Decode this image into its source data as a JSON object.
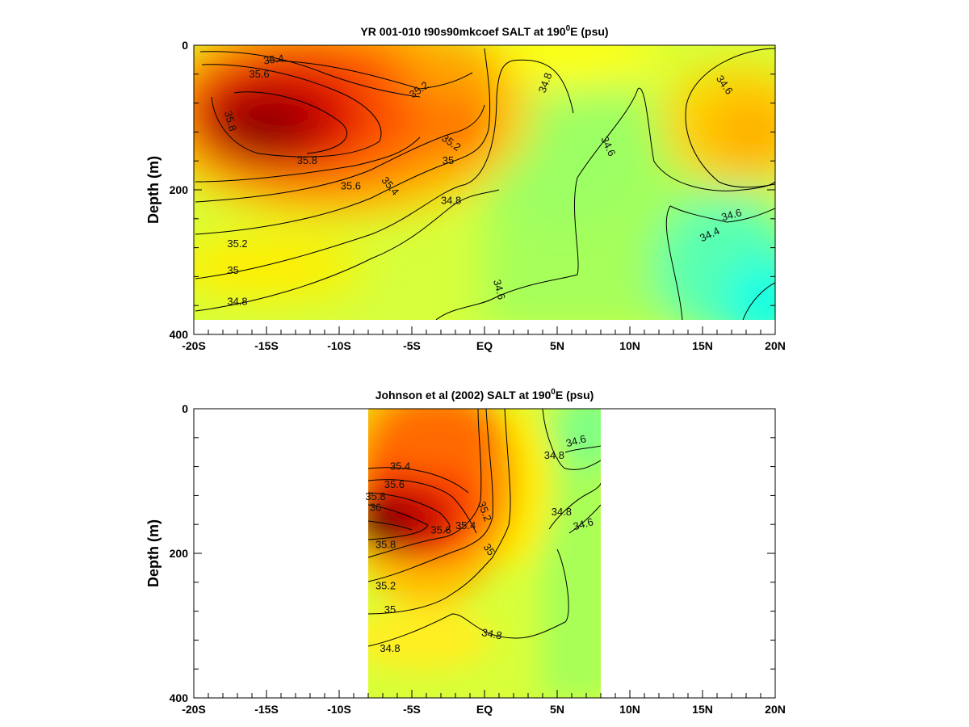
{
  "chart_data": [
    {
      "type": "heatmap",
      "title_main": "YR 001-010 t90s90mkcoef SALT at 190",
      "title_sup": "0",
      "title_tail": "E (psu)",
      "xlabel": "",
      "ylabel": "Depth (m)",
      "x_range": [
        -20,
        20
      ],
      "y_range": [
        0,
        400
      ],
      "y_inverted": true,
      "data_extent": {
        "x": [
          -20,
          20
        ],
        "depth": [
          0,
          380
        ]
      },
      "x_ticks": [
        {
          "value": -20,
          "label": "-20S"
        },
        {
          "value": -15,
          "label": "-15S"
        },
        {
          "value": -10,
          "label": "-10S"
        },
        {
          "value": -5,
          "label": "-5S"
        },
        {
          "value": 0,
          "label": "EQ"
        },
        {
          "value": 5,
          "label": "5N"
        },
        {
          "value": 10,
          "label": "10N"
        },
        {
          "value": 15,
          "label": "15N"
        },
        {
          "value": 20,
          "label": "20N"
        }
      ],
      "y_ticks": [
        {
          "value": 0,
          "label": "0"
        },
        {
          "value": 200,
          "label": "200"
        },
        {
          "value": 400,
          "label": "400"
        }
      ],
      "contour_labels": [
        {
          "text": "35.4",
          "x": -14.5,
          "depth": 20,
          "rotate": -8
        },
        {
          "text": "35.6",
          "x": -15.5,
          "depth": 40,
          "rotate": 0
        },
        {
          "text": "35.2",
          "x": -4.5,
          "depth": 62,
          "rotate": -35
        },
        {
          "text": "35.8",
          "x": -17.5,
          "depth": 105,
          "rotate": 75
        },
        {
          "text": "34.8",
          "x": 4.2,
          "depth": 52,
          "rotate": -70
        },
        {
          "text": "34.6",
          "x": 16.5,
          "depth": 55,
          "rotate": 55
        },
        {
          "text": "35.2",
          "x": -2.3,
          "depth": 135,
          "rotate": 35
        },
        {
          "text": "35",
          "x": -2.5,
          "depth": 160,
          "rotate": 0
        },
        {
          "text": "35.8",
          "x": -12.2,
          "depth": 160,
          "rotate": 0
        },
        {
          "text": "34.6",
          "x": 8.5,
          "depth": 140,
          "rotate": 65
        },
        {
          "text": "35.6",
          "x": -9.2,
          "depth": 195,
          "rotate": 0
        },
        {
          "text": "35.4",
          "x": -6.5,
          "depth": 195,
          "rotate": 50
        },
        {
          "text": "34.8",
          "x": -2.3,
          "depth": 215,
          "rotate": 0
        },
        {
          "text": "34.6",
          "x": 17.0,
          "depth": 235,
          "rotate": -15
        },
        {
          "text": "34.4",
          "x": 15.5,
          "depth": 262,
          "rotate": -25
        },
        {
          "text": "35.2",
          "x": -17.0,
          "depth": 275,
          "rotate": 0
        },
        {
          "text": "35",
          "x": -17.3,
          "depth": 312,
          "rotate": 0
        },
        {
          "text": "34.6",
          "x": 1.0,
          "depth": 338,
          "rotate": 75
        },
        {
          "text": "34.8",
          "x": -17.0,
          "depth": 355,
          "rotate": 0
        }
      ]
    },
    {
      "type": "heatmap",
      "title_main": "Johnson et al (2002) SALT at 190",
      "title_sup": "0",
      "title_tail": "E (psu)",
      "xlabel": "",
      "ylabel": "Depth (m)",
      "x_range": [
        -20,
        20
      ],
      "y_range": [
        0,
        400
      ],
      "y_inverted": true,
      "data_extent": {
        "x": [
          -8,
          8
        ],
        "depth": [
          0,
          400
        ]
      },
      "x_ticks": [
        {
          "value": -20,
          "label": "-20S"
        },
        {
          "value": -15,
          "label": "-15S"
        },
        {
          "value": -10,
          "label": "-10S"
        },
        {
          "value": -5,
          "label": "-5S"
        },
        {
          "value": 0,
          "label": "EQ"
        },
        {
          "value": 5,
          "label": "5N"
        },
        {
          "value": 10,
          "label": "10N"
        },
        {
          "value": 15,
          "label": "15N"
        },
        {
          "value": 20,
          "label": "20N"
        }
      ],
      "y_ticks": [
        {
          "value": 0,
          "label": "0"
        },
        {
          "value": 200,
          "label": "200"
        },
        {
          "value": 400,
          "label": "400"
        }
      ],
      "contour_labels": [
        {
          "text": "34.6",
          "x": 6.3,
          "depth": 45,
          "rotate": -15
        },
        {
          "text": "34.8",
          "x": 4.8,
          "depth": 65,
          "rotate": 0
        },
        {
          "text": "35.4",
          "x": -5.8,
          "depth": 80,
          "rotate": 0
        },
        {
          "text": "35.6",
          "x": -6.2,
          "depth": 105,
          "rotate": 0
        },
        {
          "text": "35.8",
          "x": -7.5,
          "depth": 122,
          "rotate": 0
        },
        {
          "text": "36",
          "x": -7.5,
          "depth": 137,
          "rotate": 0
        },
        {
          "text": "35.2",
          "x": 0.0,
          "depth": 142,
          "rotate": 70
        },
        {
          "text": "34.8",
          "x": 5.3,
          "depth": 143,
          "rotate": 0
        },
        {
          "text": "34.6",
          "x": 6.8,
          "depth": 160,
          "rotate": -15
        },
        {
          "text": "35.6",
          "x": -3.0,
          "depth": 168,
          "rotate": 0
        },
        {
          "text": "35.4",
          "x": -1.3,
          "depth": 162,
          "rotate": 0
        },
        {
          "text": "35.8",
          "x": -6.8,
          "depth": 188,
          "rotate": 0
        },
        {
          "text": "35",
          "x": 0.3,
          "depth": 195,
          "rotate": 55
        },
        {
          "text": "35.2",
          "x": -6.8,
          "depth": 245,
          "rotate": 0
        },
        {
          "text": "35",
          "x": -6.5,
          "depth": 278,
          "rotate": 0
        },
        {
          "text": "34.8",
          "x": 0.5,
          "depth": 312,
          "rotate": 10
        },
        {
          "text": "34.8",
          "x": -6.5,
          "depth": 332,
          "rotate": 0
        }
      ]
    }
  ]
}
